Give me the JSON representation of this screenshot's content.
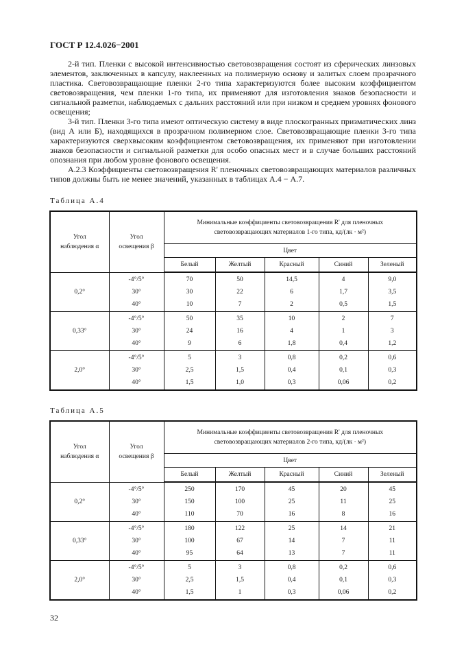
{
  "header": "ГОСТ Р 12.4.026−2001",
  "paragraphs": [
    "2-й тип. Пленки с высокой интенсивностью световозвращения состоят из сферических линзовых элементов, заключенных в капсулу, наклеенных на полимерную основу и залитых слоем прозрачного пластика. Световозвращающие пленки 2-го типа характеризуются более высоким коэффициентом световозвращения, чем пленки 1-го типа, их применяют для изготовления знаков безопасности и сигнальной разметки, наблюдаемых с дальних расстояний или при низком и среднем уровнях фонового освещения;",
    "3-й тип. Пленки 3-го типа имеют оптическую систему в виде плоскогранных призматических линз (вид А или Б), находящихся в прозрачном полимерном слое. Световозвращающие пленки 3-го типа характеризуются сверхвысоким коэффициентом световозвращения, их применяют при изготовлении знаков безопасности и сигнальной разметки для особо опасных мест и в случае больших расстояний опознания при любом уровне фонового освещения.",
    "А.2.3 Коэффициенты световозвращения R' пленочных световозвращающих материалов различных типов должны быть не менее значений, указанных в таблицах А.4 − А.7."
  ],
  "tables": [
    {
      "caption": "Таблица А.4",
      "col_alpha": "Угол наблюдения α",
      "col_beta": "Угол освещения β",
      "title": "Минимальные коэффициенты световозвращения R' для пленочных световозвращающих материалов 1-го типа, кд/(лк · м²)",
      "color_header": "Цвет",
      "colors": [
        "Белый",
        "Желтый",
        "Красный",
        "Синий",
        "Зеленый"
      ],
      "groups": [
        {
          "alpha": "0,2°",
          "betas": "-4°/5°\n30°\n40°",
          "cols": [
            "70\n30\n10",
            "50\n22\n7",
            "14,5\n6\n2",
            "4\n1,7\n0,5",
            "9,0\n3,5\n1,5"
          ]
        },
        {
          "alpha": "0,33°",
          "betas": "-4°/5°\n30°\n40°",
          "cols": [
            "50\n24\n9",
            "35\n16\n6",
            "10\n4\n1,8",
            "2\n1\n0,4",
            "7\n3\n1,2"
          ]
        },
        {
          "alpha": "2,0°",
          "betas": "-4°/5°\n30°\n40°",
          "cols": [
            "5\n2,5\n1,5",
            "3\n1,5\n1,0",
            "0,8\n0,4\n0,3",
            "0,2\n0,1\n0,06",
            "0,6\n0,3\n0,2"
          ]
        }
      ]
    },
    {
      "caption": "Таблица А.5",
      "col_alpha": "Угол наблюдения α",
      "col_beta": "Угол освещения β",
      "title": "Минимальные коэффициенты световозвращения R' для пленочных световозвращающих материалов 2-го типа, кд/(лк · м²)",
      "color_header": "Цвет",
      "colors": [
        "Белый",
        "Желтый",
        "Красный",
        "Синий",
        "Зеленый"
      ],
      "groups": [
        {
          "alpha": "0,2°",
          "betas": "-4°/5°\n30°\n40°",
          "cols": [
            "250\n150\n110",
            "170\n100\n70",
            "45\n25\n16",
            "20\n11\n8",
            "45\n25\n16"
          ]
        },
        {
          "alpha": "0,33°",
          "betas": "-4°/5°\n30°\n40°",
          "cols": [
            "180\n100\n95",
            "122\n67\n64",
            "25\n14\n13",
            "14\n7\n7",
            "21\n11\n11"
          ]
        },
        {
          "alpha": "2,0°",
          "betas": "-4°/5°\n30°\n40°",
          "cols": [
            "5\n2,5\n1,5",
            "3\n1,5\n1",
            "0,8\n0,4\n0,3",
            "0,2\n0,1\n0,06",
            "0,6\n0,3\n0,2"
          ]
        }
      ]
    }
  ],
  "page_number": "32"
}
